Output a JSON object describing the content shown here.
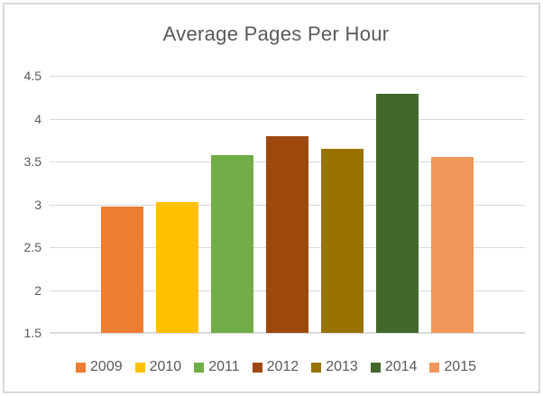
{
  "chart_data": {
    "type": "bar",
    "title": "Average Pages Per Hour",
    "categories": [
      "2009",
      "2010",
      "2011",
      "2012",
      "2013",
      "2014",
      "2015"
    ],
    "values": [
      2.97,
      3.03,
      3.57,
      3.8,
      3.65,
      4.29,
      3.55
    ],
    "colors": [
      "#ED7D31",
      "#FFC000",
      "#70AD47",
      "#9E480E",
      "#997300",
      "#43682B",
      "#F1975A"
    ],
    "xlabel": "",
    "ylabel": "",
    "ylim": [
      1.5,
      4.5
    ],
    "ytick_step": 0.5,
    "yticks": [
      "4.5",
      "4",
      "3.5",
      "3",
      "2.5",
      "2",
      "1.5"
    ],
    "grid": true,
    "legend_position": "bottom",
    "legend_labels": [
      "2009",
      "2010",
      "2011",
      "2012",
      "2013",
      "2014",
      "2015"
    ]
  },
  "style": {
    "text_color": "#595959",
    "gridline_color": "#D9D9D9",
    "frame_border_color": "#D9D9D9",
    "background_color": "#FFFFFF"
  }
}
